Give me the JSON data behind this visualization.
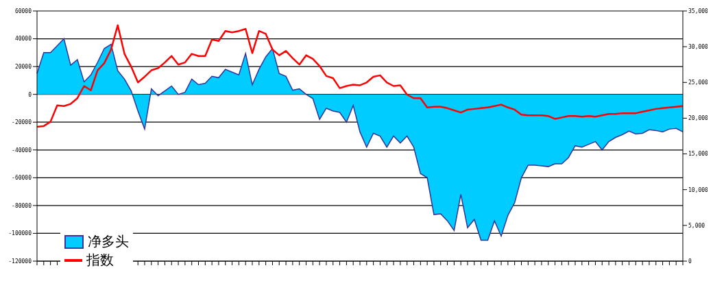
{
  "chart_data": {
    "type": "area",
    "categories": [
      null,
      null,
      null,
      null,
      null,
      null,
      null,
      null,
      null,
      null,
      null,
      null,
      null,
      null,
      null,
      null,
      null,
      null,
      null,
      null,
      null,
      null,
      null,
      null,
      null,
      null,
      null,
      null,
      null,
      null,
      null,
      null,
      null,
      null,
      null,
      null,
      null,
      null,
      null,
      null,
      null,
      null,
      null,
      null,
      null,
      null,
      null,
      null,
      null,
      null,
      null,
      null,
      null,
      null,
      null,
      null,
      null,
      null,
      null,
      null,
      null,
      null,
      null,
      null,
      null,
      null,
      null,
      null,
      null,
      null,
      null,
      null,
      null,
      null,
      null,
      null,
      null,
      null,
      null,
      null,
      null,
      null,
      null,
      null,
      null,
      null,
      null,
      null,
      null,
      null,
      null,
      null,
      null,
      null,
      null,
      null,
      null
    ],
    "series": [
      {
        "name": "净多头",
        "color": "#00ccff",
        "values": [
          15000,
          30000,
          30000,
          35000,
          40000,
          21000,
          25000,
          9000,
          14000,
          23000,
          33000,
          36000,
          17000,
          11000,
          2500,
          -12000,
          -25000,
          4000,
          -1000,
          2500,
          6000,
          0,
          1500,
          11000,
          7000,
          8000,
          13000,
          12000,
          18000,
          16000,
          14000,
          29500,
          7000,
          18000,
          27000,
          33000,
          15000,
          13000,
          3000,
          4000,
          0,
          -3000,
          -18000,
          -10000,
          -12000,
          -13000,
          -20000,
          -8000,
          -27000,
          -38000,
          -28000,
          -30000,
          -38000,
          -30000,
          -35000,
          -30000,
          -38000,
          -57000,
          -60000,
          -86500,
          -86000,
          -91000,
          -98000,
          -72000,
          -96000,
          -90000,
          -105000,
          -105000,
          -91000,
          -102000,
          -87000,
          -78000,
          -60000,
          -51000,
          -51000,
          -51500,
          -52000,
          -50000,
          -50000,
          -45500,
          -37000,
          -38000,
          -36000,
          -34000,
          -40000,
          -34000,
          -31000,
          -29000,
          -26500,
          -28500,
          -28000,
          -25500,
          -26000,
          -27000,
          -25000,
          -24500,
          -27000
        ]
      },
      {
        "name": "指数",
        "type": "line",
        "axis": "y2",
        "color": "#ff0000",
        "values": [
          18800,
          18900,
          19500,
          21800,
          21700,
          22000,
          22800,
          24500,
          23900,
          26700,
          27700,
          29600,
          33000,
          29000,
          27200,
          25000,
          25800,
          26700,
          27000,
          27800,
          28700,
          27500,
          27800,
          29000,
          28700,
          28700,
          31000,
          30800,
          32200,
          32000,
          32200,
          32500,
          29100,
          32200,
          31800,
          29600,
          28800,
          29400,
          28400,
          27500,
          28800,
          28300,
          27300,
          25900,
          25600,
          24200,
          24500,
          24700,
          24600,
          25000,
          25800,
          26000,
          25000,
          24500,
          24600,
          23300,
          22800,
          22800,
          21500,
          21600,
          21600,
          21400,
          21100,
          20800,
          21200,
          21300,
          21400,
          21500,
          21700,
          21900,
          21500,
          21200,
          20500,
          20400,
          20400,
          20400,
          20300,
          19900,
          20100,
          20300,
          20300,
          20200,
          20300,
          20200,
          20400,
          20600,
          20600,
          20700,
          20700,
          20700,
          20900,
          21100,
          21300,
          21400,
          21500,
          21600,
          21700
        ]
      }
    ],
    "ylim": [
      -120000,
      60000
    ],
    "yticks": [
      -120000,
      -100000,
      -80000,
      -60000,
      -40000,
      -20000,
      0,
      20000,
      40000,
      60000
    ],
    "y2lim": [
      0,
      35000
    ],
    "y2ticks": [
      0,
      {
        "value": 5000,
        "label": "5,000"
      },
      {
        "value": 10000,
        "label": "10,000"
      },
      {
        "value": 15000,
        "label": "15,000"
      },
      {
        "value": 20000,
        "label": "20,000"
      },
      {
        "value": 25000,
        "label": "25,000"
      },
      {
        "value": 30000,
        "label": "30,000"
      },
      {
        "value": 35000,
        "label": "35,000"
      }
    ],
    "grid": "y",
    "legend": "bottom left",
    "marker": "none",
    "line_style": "solid"
  }
}
